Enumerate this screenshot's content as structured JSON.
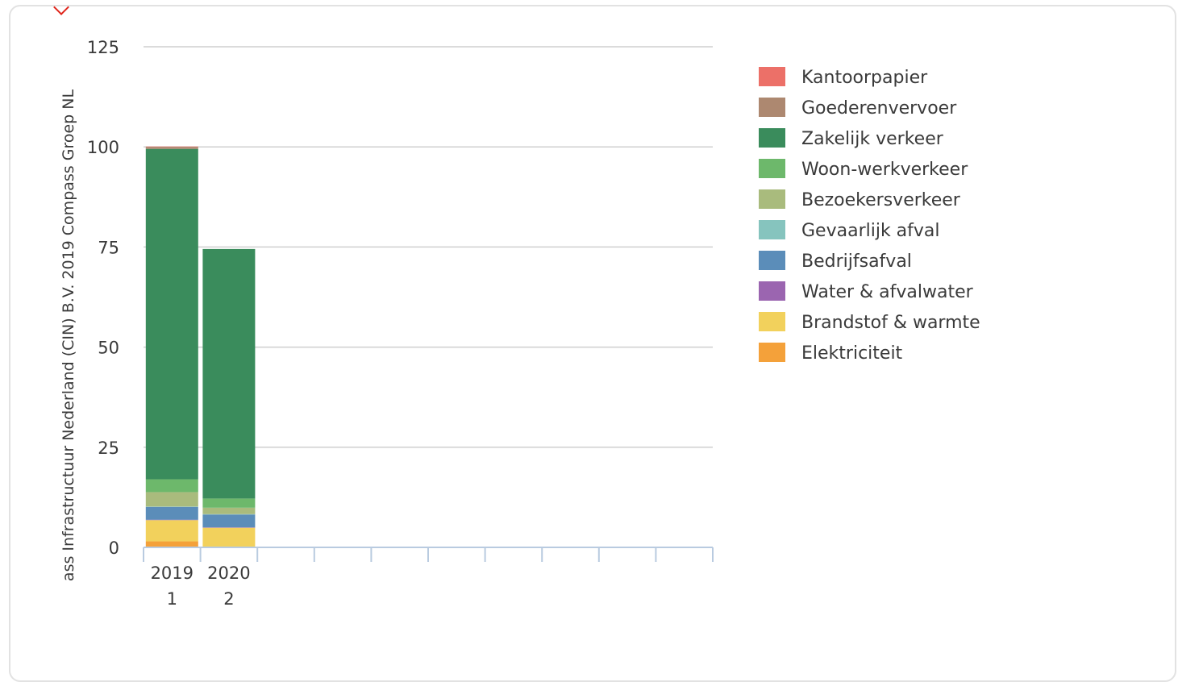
{
  "chart_data": {
    "type": "bar",
    "stacked": true,
    "categories": [
      "2019",
      "2020"
    ],
    "category_sublabels": [
      "1",
      "2"
    ],
    "empty_slots": 8,
    "ylabel": "ass Infrastructuur Nederland (CIN) B.V. 2019 Compass Groep NL",
    "ylim": [
      0,
      125
    ],
    "yticks": [
      0,
      25,
      50,
      75,
      100,
      125
    ],
    "grid": true,
    "legend_position": "right",
    "series": [
      {
        "name": "Elektriciteit",
        "color": "#f4a13a",
        "values": [
          1.5,
          0.1
        ]
      },
      {
        "name": "Brandstof & warmte",
        "color": "#f2d15c",
        "values": [
          5.3,
          4.8
        ]
      },
      {
        "name": "Water & afvalwater",
        "color": "#9b65b0",
        "values": [
          0.1,
          0.1
        ]
      },
      {
        "name": "Bedrijfsafval",
        "color": "#5b8db9",
        "values": [
          3.2,
          3.2
        ]
      },
      {
        "name": "Gevaarlijk afval",
        "color": "#86c4be",
        "values": [
          0.1,
          0.1
        ]
      },
      {
        "name": "Bezoekersverkeer",
        "color": "#a9bb7d",
        "values": [
          3.6,
          1.6
        ]
      },
      {
        "name": "Woon-werkverkeer",
        "color": "#6db86b",
        "values": [
          3.2,
          2.3
        ]
      },
      {
        "name": "Zakelijk verkeer",
        "color": "#3a8c5c",
        "values": [
          82.5,
          62.3
        ]
      },
      {
        "name": "Goederenvervoer",
        "color": "#ad8870",
        "values": [
          0.5,
          0.0
        ]
      },
      {
        "name": "Kantoorpapier",
        "color": "#ec7068",
        "values": [
          0.1,
          0.0
        ]
      }
    ],
    "legend_order": [
      "Kantoorpapier",
      "Goederenvervoer",
      "Zakelijk verkeer",
      "Woon-werkverkeer",
      "Bezoekersverkeer",
      "Gevaarlijk afval",
      "Bedrijfsafval",
      "Water & afvalwater",
      "Brandstof & warmte",
      "Elektriciteit"
    ]
  }
}
